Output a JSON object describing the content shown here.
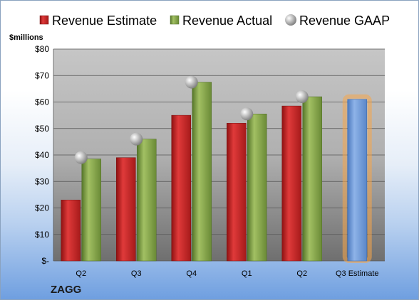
{
  "chart_data": {
    "type": "bar",
    "categories": [
      "Q2",
      "Q3",
      "Q4",
      "Q1",
      "Q2",
      "Q3 Estimate"
    ],
    "series": [
      {
        "name": "Revenue Estimate",
        "values": [
          23,
          39,
          55,
          52,
          58.5,
          61
        ],
        "color": "#cc2222"
      },
      {
        "name": "Revenue Actual",
        "values": [
          38.5,
          46,
          67.5,
          55.5,
          62,
          null
        ],
        "color": "#7da040"
      },
      {
        "name": "Revenue GAAP",
        "values": [
          39,
          46,
          67.5,
          55.5,
          62,
          null
        ],
        "color": "#b8b8b8"
      }
    ],
    "estimate_bar": {
      "category": "Q3 Estimate",
      "value": 61,
      "color": "#6f9ad8",
      "glow": "#f5a54a"
    },
    "ylabel": "$millions",
    "ylim": [
      0,
      80
    ],
    "yticks": [
      0,
      10,
      20,
      30,
      40,
      50,
      60,
      70,
      80
    ],
    "ytick_labels": [
      "$-",
      "$10",
      "$20",
      "$30",
      "$40",
      "$50",
      "$60",
      "$70",
      "$80"
    ],
    "grid": true,
    "legend": "top",
    "brand": "ZAGG"
  }
}
